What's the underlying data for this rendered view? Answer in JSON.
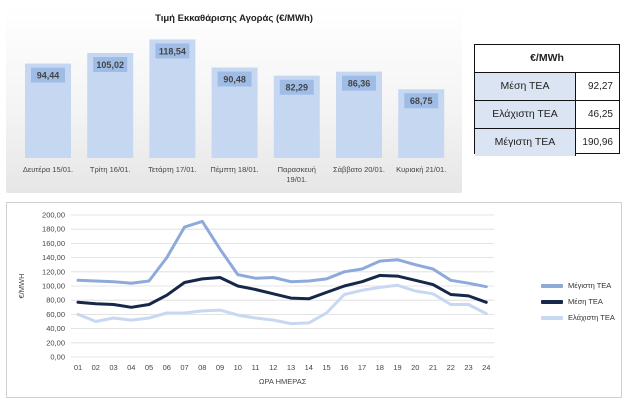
{
  "chart_data": [
    {
      "type": "bar",
      "title": "Τιμή Εκκαθάρισης Αγοράς (€/MWh)",
      "categories": [
        "Δευτέρα 15/01.",
        "Τρίτη 16/01.",
        "Τετάρτη 17/01.",
        "Πέμπτη 18/01.",
        "Παρασκευή 19/01.",
        "Σάββατο 20/01.",
        "Κυριακή 21/01."
      ],
      "values": [
        94.44,
        105.02,
        118.54,
        90.48,
        82.29,
        86.36,
        68.75
      ],
      "value_labels": [
        "94,44",
        "105,02",
        "118,54",
        "90,48",
        "82,29",
        "86,36",
        "68,75"
      ],
      "category_lines": [
        [
          "Δευτέρα 15/01."
        ],
        [
          "Τρίτη 16/01."
        ],
        [
          "Τετάρτη 17/01."
        ],
        [
          "Πέμπτη 18/01."
        ],
        [
          "Παρασκευή",
          "19/01."
        ],
        [
          "Σάββατο 20/01."
        ],
        [
          "Κυριακή 21/01."
        ]
      ],
      "colors": {
        "bar": "#c6d8f1",
        "label_box": "#9fbce6",
        "label_text": "#ffffff"
      }
    },
    {
      "type": "line",
      "xlabel": "ΩΡΑ ΗΜΕΡΑΣ",
      "ylabel": "€/MWH",
      "x": [
        "01",
        "02",
        "03",
        "04",
        "05",
        "06",
        "07",
        "08",
        "09",
        "10",
        "11",
        "12",
        "13",
        "14",
        "15",
        "16",
        "17",
        "18",
        "19",
        "20",
        "21",
        "22",
        "23",
        "24"
      ],
      "ylim": [
        0,
        200
      ],
      "yticks": [
        "0,00",
        "20,00",
        "40,00",
        "60,00",
        "80,00",
        "100,00",
        "120,00",
        "140,00",
        "160,00",
        "180,00",
        "200,00"
      ],
      "grid": true,
      "legend_position": "right",
      "series": [
        {
          "name": "Μέγιστη ΤΕΑ",
          "color": "#8eaadb",
          "values": [
            108,
            107,
            106,
            104,
            107,
            140,
            183,
            191,
            152,
            116,
            111,
            112,
            106,
            107,
            110,
            120,
            124,
            135,
            137,
            130,
            124,
            108,
            104,
            99
          ]
        },
        {
          "name": "Μέση ΤΕΑ",
          "color": "#16284a",
          "values": [
            77,
            75,
            74,
            70,
            74,
            87,
            105,
            110,
            112,
            100,
            95,
            89,
            83,
            82,
            91,
            100,
            106,
            115,
            114,
            108,
            102,
            88,
            86,
            77
          ]
        },
        {
          "name": "Ελάχιστη ΤΕΑ",
          "color": "#c7d8f0",
          "values": [
            60,
            50,
            55,
            52,
            55,
            62,
            62,
            65,
            66,
            59,
            55,
            52,
            47,
            48,
            62,
            88,
            94,
            98,
            101,
            93,
            89,
            74,
            74,
            61
          ]
        }
      ]
    }
  ],
  "stats_table": {
    "header": "€/MWh",
    "rows": [
      {
        "label": "Μέση ΤΕΑ",
        "value": "92,27"
      },
      {
        "label": "Ελάχιστη ΤΕΑ",
        "value": "46,25"
      },
      {
        "label": "Μέγιστη ΤΕΑ",
        "value": "190,96"
      }
    ]
  }
}
